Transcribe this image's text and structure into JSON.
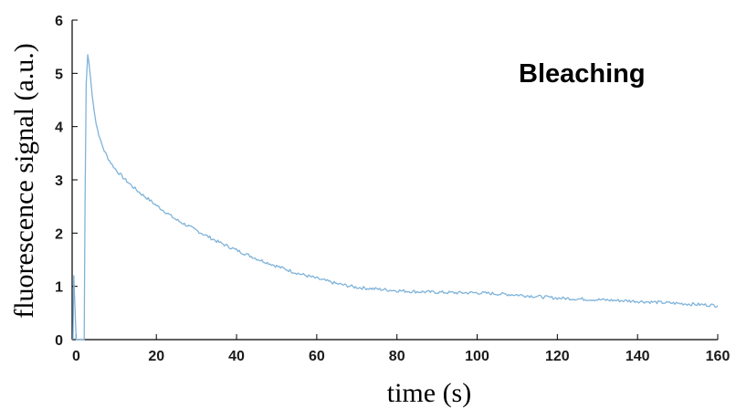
{
  "chart_data": {
    "type": "line",
    "title": "",
    "xlabel": "time (s)",
    "ylabel": "fluorescence signal (a.u.)",
    "annotation": "Bleaching",
    "xlim": [
      -1,
      160
    ],
    "ylim": [
      0,
      6
    ],
    "x_ticks": [
      0,
      20,
      40,
      60,
      80,
      100,
      120,
      140,
      160
    ],
    "y_ticks": [
      0,
      1,
      2,
      3,
      4,
      5,
      6
    ],
    "grid": false,
    "legend": "none",
    "line_color": "#7fb3d9",
    "series": [
      {
        "x": [
          -0.8,
          -0.6,
          -0.3,
          0,
          0.2,
          2,
          2.2,
          2.5,
          2.9,
          3.2,
          3.6,
          4,
          4.5,
          5,
          6,
          7,
          8,
          9,
          10,
          12,
          14,
          16,
          18,
          20,
          25,
          30,
          35,
          40,
          45,
          50,
          55,
          60,
          65,
          70,
          75,
          80,
          85,
          90,
          95,
          100,
          110,
          120,
          130,
          140,
          150,
          160
        ],
        "y": [
          0.0,
          1.2,
          0.6,
          0.0,
          0.0,
          0.0,
          2.5,
          4.8,
          5.35,
          5.2,
          4.9,
          4.6,
          4.3,
          4.05,
          3.75,
          3.55,
          3.4,
          3.28,
          3.18,
          3.02,
          2.88,
          2.75,
          2.64,
          2.52,
          2.25,
          2.05,
          1.85,
          1.68,
          1.52,
          1.38,
          1.25,
          1.15,
          1.05,
          0.98,
          0.95,
          0.92,
          0.9,
          0.89,
          0.88,
          0.88,
          0.84,
          0.78,
          0.75,
          0.72,
          0.68,
          0.64
        ]
      }
    ]
  }
}
